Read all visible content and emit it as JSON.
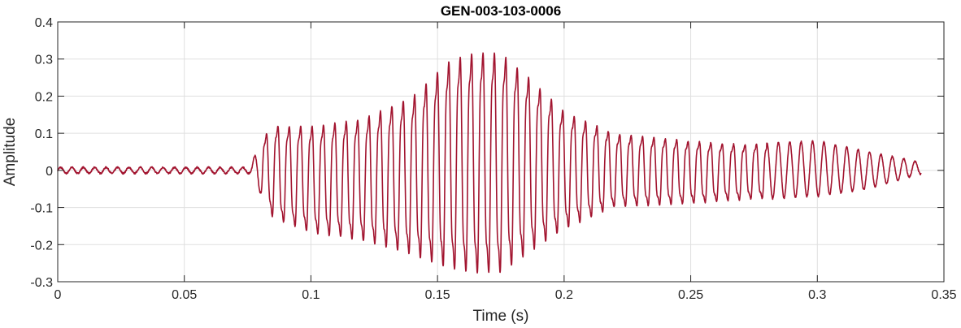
{
  "chart_data": {
    "type": "line",
    "title": "GEN-003-103-0006",
    "xlabel": "Time (s)",
    "ylabel": "Amplitude",
    "xlim": [
      0,
      0.35
    ],
    "ylim": [
      -0.3,
      0.4
    ],
    "x_ticks": [
      0,
      0.05,
      0.1,
      0.15,
      0.2,
      0.25,
      0.3,
      0.35
    ],
    "x_tick_labels": [
      "0",
      "0.05",
      "0.1",
      "0.15",
      "0.2",
      "0.25",
      "0.3",
      "0.35"
    ],
    "y_ticks": [
      -0.3,
      -0.2,
      -0.1,
      0,
      0.1,
      0.2,
      0.3,
      0.4
    ],
    "y_tick_labels": [
      "-0.3",
      "-0.2",
      "-0.1",
      "0",
      "0.1",
      "0.2",
      "0.3",
      "0.4"
    ],
    "grid": true,
    "line_color": "#A2142F",
    "series": [
      {
        "x_start": 0,
        "x_end": 0.341,
        "envelope": {
          "t": [
            0,
            0.076,
            0.08,
            0.085,
            0.1,
            0.12,
            0.14,
            0.155,
            0.165,
            0.175,
            0.185,
            0.2,
            0.22,
            0.25,
            0.27,
            0.3,
            0.32,
            0.335,
            0.341
          ],
          "upper": [
            0.008,
            0.008,
            0.08,
            0.12,
            0.12,
            0.14,
            0.2,
            0.3,
            0.32,
            0.32,
            0.26,
            0.16,
            0.1,
            0.08,
            0.07,
            0.08,
            0.05,
            0.03,
            0.02
          ],
          "lower": [
            -0.008,
            -0.008,
            -0.06,
            -0.13,
            -0.17,
            -0.19,
            -0.23,
            -0.27,
            -0.28,
            -0.28,
            -0.23,
            -0.16,
            -0.1,
            -0.09,
            -0.08,
            -0.07,
            -0.05,
            -0.02,
            -0.01
          ]
        },
        "oscillation_period_s": 0.0045
      }
    ]
  }
}
